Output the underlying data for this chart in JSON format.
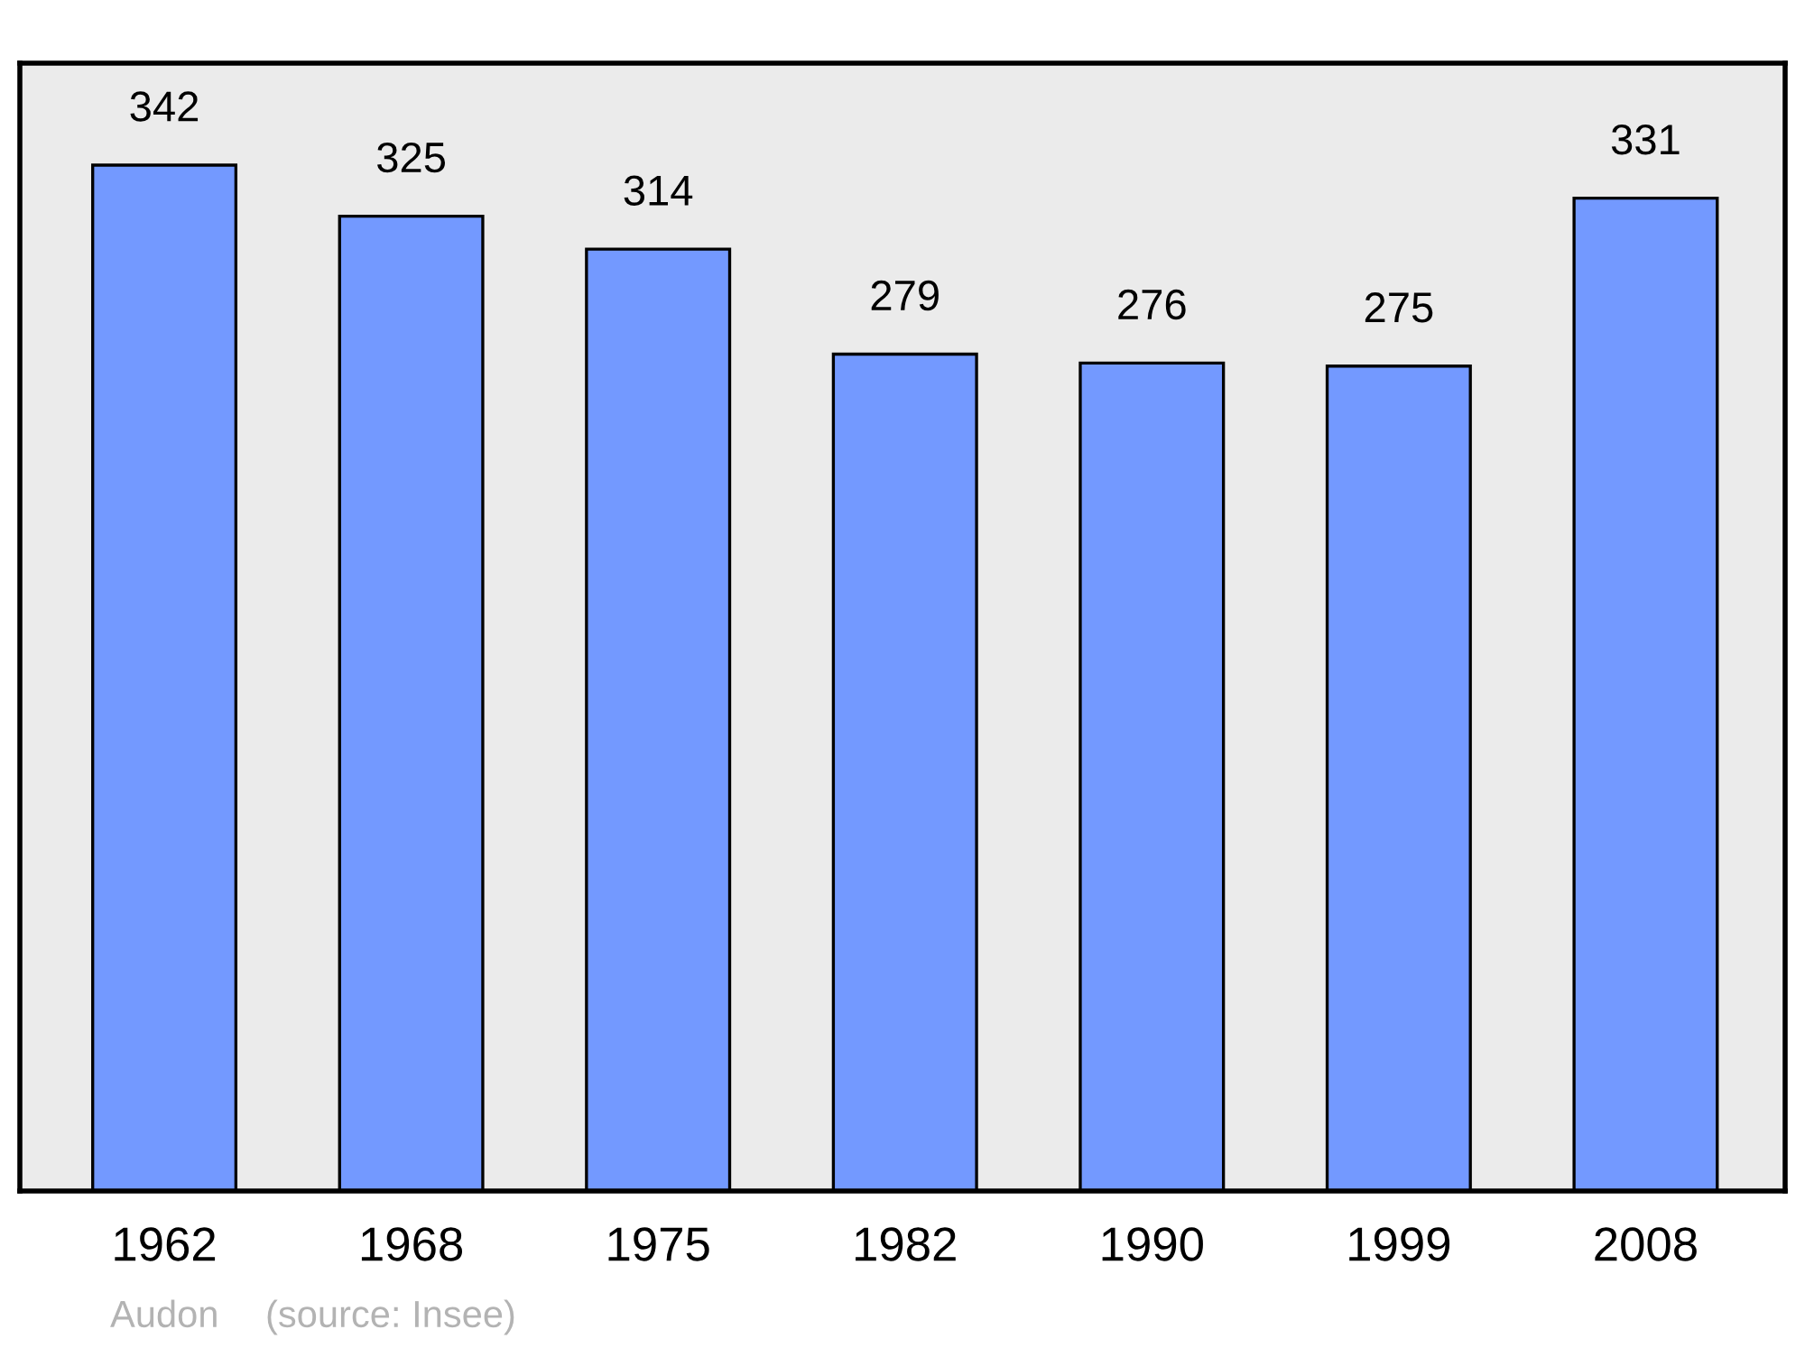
{
  "chart_data": {
    "type": "bar",
    "categories": [
      "1962",
      "1968",
      "1975",
      "1982",
      "1990",
      "1999",
      "2008"
    ],
    "values": [
      342,
      325,
      314,
      279,
      276,
      275,
      331
    ],
    "color": "#7399ff",
    "ylim": [
      0,
      376
    ],
    "data_labels": true,
    "tick_labels": "x",
    "annotations": [
      "Audon",
      "(source: Insee)"
    ]
  }
}
